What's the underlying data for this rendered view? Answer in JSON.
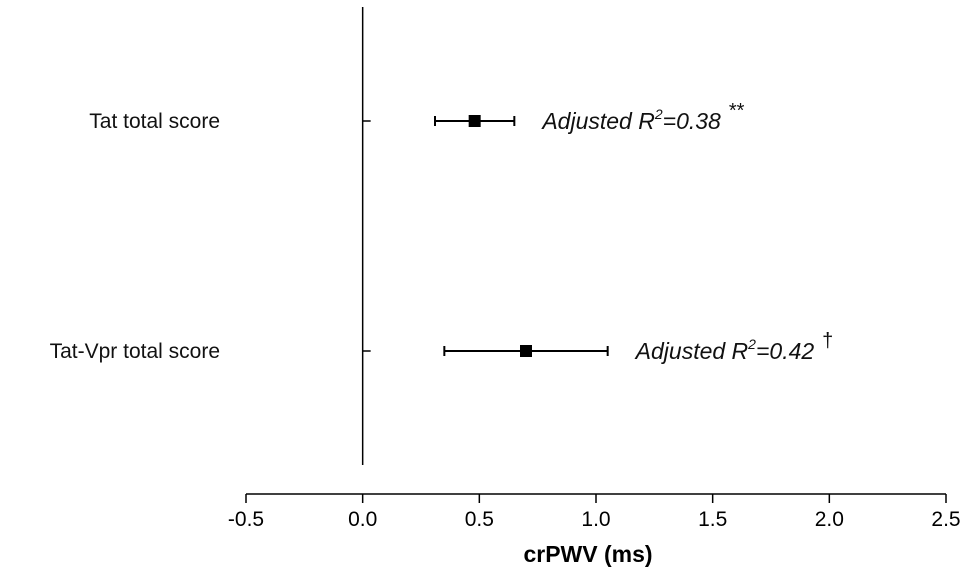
{
  "chart_data": {
    "type": "forest",
    "xlabel": "crPWV (ms)",
    "xlim": [
      -0.5,
      2.5
    ],
    "xticks": [
      "-0.5",
      "0.0",
      "0.5",
      "1.0",
      "1.5",
      "2.0",
      "2.5"
    ],
    "reference_line_x": 0.0,
    "grid": false,
    "rows": [
      {
        "label": "Tat total score",
        "estimate": 0.48,
        "ci_low": 0.31,
        "ci_high": 0.65,
        "annotation_prefix": "Adjusted R",
        "annotation_sup": "2",
        "annotation_value": "=0.38",
        "significance": "**"
      },
      {
        "label": "Tat-Vpr total score",
        "estimate": 0.7,
        "ci_low": 0.35,
        "ci_high": 1.05,
        "annotation_prefix": "Adjusted R",
        "annotation_sup": "2",
        "annotation_value": "=0.42",
        "significance": "†"
      }
    ]
  },
  "colors": {
    "ink": "#000000"
  }
}
